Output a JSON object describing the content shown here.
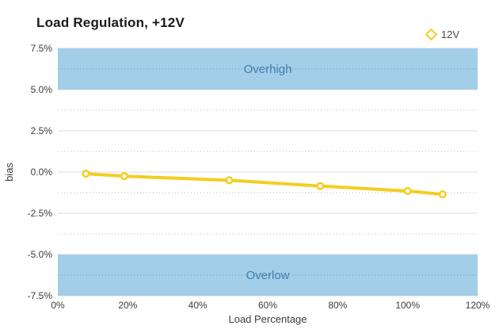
{
  "title": "Load Regulation, +12V",
  "legend": {
    "items": [
      {
        "label": "12V",
        "color": "#F2CE21"
      }
    ]
  },
  "colors": {
    "series_yellow": "#F2CE21",
    "band_blue": "#A3CEE9",
    "band_text": "#3D7EAD",
    "grid_major": "#dddddd",
    "grid_minor": "rgba(0,0,0,0.28)",
    "tick_text": "#3c3c3c",
    "axis_title_text": "#3c3c3c"
  },
  "chart_data": {
    "type": "line",
    "title": "Load Regulation, +12V",
    "xlabel": "Load Percentage",
    "ylabel": "bias",
    "xlim": [
      0,
      120
    ],
    "ylim": [
      -7.5,
      7.5
    ],
    "grid": true,
    "legend_position": "top-right",
    "x_ticks": [
      {
        "v": 0,
        "t": "0%"
      },
      {
        "v": 20,
        "t": "20%"
      },
      {
        "v": 40,
        "t": "40%"
      },
      {
        "v": 60,
        "t": "60%"
      },
      {
        "v": 80,
        "t": "80%"
      },
      {
        "v": 100,
        "t": "100%"
      },
      {
        "v": 120,
        "t": "120%"
      }
    ],
    "y_ticks": [
      {
        "v": 7.5,
        "t": "7.5%"
      },
      {
        "v": 5.0,
        "t": "5.0%"
      },
      {
        "v": 2.5,
        "t": "2.5%"
      },
      {
        "v": 0.0,
        "t": "0.0%"
      },
      {
        "v": -2.5,
        "t": "-2.5%"
      },
      {
        "v": -5.0,
        "t": "-5.0%"
      },
      {
        "v": -7.5,
        "t": "-7.5%"
      }
    ],
    "y_minor_ticks": [
      6.25,
      3.75,
      1.25,
      -1.25,
      -3.75,
      -6.25
    ],
    "bands": [
      {
        "label": "Overhigh",
        "from": 5.0,
        "to": 7.5,
        "color": "#A3CEE9",
        "label_color": "#3D7EAD"
      },
      {
        "label": "Overlow",
        "from": -7.5,
        "to": -5.0,
        "color": "#A3CEE9",
        "label_color": "#3D7EAD"
      }
    ],
    "series": [
      {
        "name": "12V",
        "color": "#F2CE21",
        "marker": "circle",
        "x": [
          8,
          19,
          49,
          75,
          100,
          110
        ],
        "y": [
          -0.1,
          -0.25,
          -0.5,
          -0.85,
          -1.15,
          -1.35
        ]
      }
    ]
  }
}
